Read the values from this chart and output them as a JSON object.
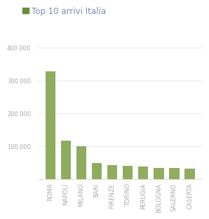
{
  "title": "Top 10 arrivi Italia",
  "categories": [
    "ROMA",
    "NAPOLI",
    "MILANO",
    "BARI",
    "FIRENZE",
    "TORINO",
    "PERUGIA",
    "BOLOGNA",
    "SALERNO",
    "CASERTA"
  ],
  "values": [
    328000,
    118000,
    100000,
    50000,
    43000,
    41000,
    38000,
    35000,
    34000,
    32000
  ],
  "bar_color": "#8fac5f",
  "ylim": [
    0,
    440000
  ],
  "yticks": [
    0,
    100000,
    200000,
    300000,
    400000
  ],
  "ytick_labels": [
    "",
    "100.000",
    "200.000",
    "300.000",
    "400.000"
  ],
  "background_color": "#ffffff",
  "title_color": "#7a8fb0",
  "title_fontsize": 8.5,
  "tick_label_fontsize": 6.0,
  "legend_square_color": "#6b8c3e",
  "grid_color": "#e0e0e0"
}
